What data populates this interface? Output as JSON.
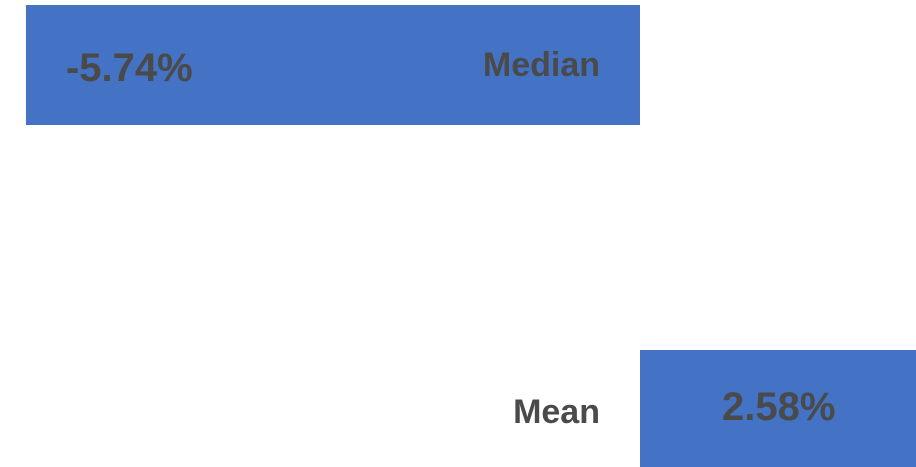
{
  "chart_data": {
    "type": "bar",
    "orientation": "horizontal",
    "categories": [
      "Median",
      "Mean"
    ],
    "values": [
      -5.74,
      2.58
    ],
    "value_labels": [
      "-5.74%",
      "2.58%"
    ],
    "unit": "%",
    "title": "",
    "xlabel": "",
    "ylabel": "",
    "grid": false,
    "legend": "none",
    "colors": {
      "bar": "#4472C4",
      "label": "#4a4a4a"
    }
  }
}
